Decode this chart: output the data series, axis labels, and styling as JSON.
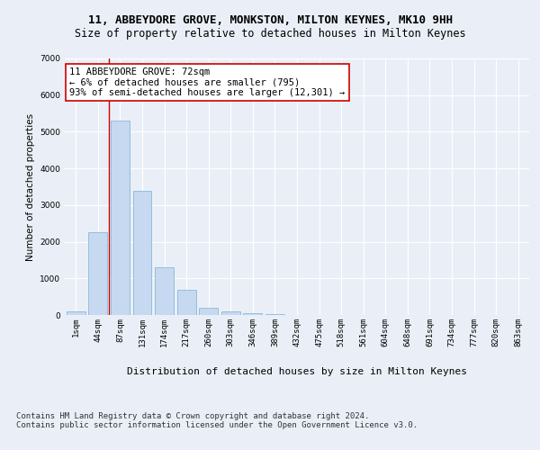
{
  "title_line1": "11, ABBEYDORE GROVE, MONKSTON, MILTON KEYNES, MK10 9HH",
  "title_line2": "Size of property relative to detached houses in Milton Keynes",
  "xlabel": "Distribution of detached houses by size in Milton Keynes",
  "ylabel": "Number of detached properties",
  "categories": [
    "1sqm",
    "44sqm",
    "87sqm",
    "131sqm",
    "174sqm",
    "217sqm",
    "260sqm",
    "303sqm",
    "346sqm",
    "389sqm",
    "432sqm",
    "475sqm",
    "518sqm",
    "561sqm",
    "604sqm",
    "648sqm",
    "691sqm",
    "734sqm",
    "777sqm",
    "820sqm",
    "863sqm"
  ],
  "values": [
    100,
    2250,
    5300,
    3400,
    1300,
    700,
    200,
    100,
    50,
    20,
    10,
    5,
    2,
    1,
    0,
    0,
    0,
    0,
    0,
    0,
    0
  ],
  "bar_color": "#c6d9f0",
  "bar_edge_color": "#7bafd4",
  "vline_color": "#cc0000",
  "vline_x": 1.5,
  "annotation_text": "11 ABBEYDORE GROVE: 72sqm\n← 6% of detached houses are smaller (795)\n93% of semi-detached houses are larger (12,301) →",
  "annotation_box_color": "#ffffff",
  "annotation_box_edge": "#cc0000",
  "ylim": [
    0,
    7000
  ],
  "yticks": [
    0,
    1000,
    2000,
    3000,
    4000,
    5000,
    6000,
    7000
  ],
  "footnote": "Contains HM Land Registry data © Crown copyright and database right 2024.\nContains public sector information licensed under the Open Government Licence v3.0.",
  "bg_color": "#eaeff7",
  "plot_bg_color": "#eaeff7",
  "grid_color": "#ffffff",
  "title_fontsize": 9,
  "subtitle_fontsize": 8.5,
  "footnote_fontsize": 6.5,
  "ylabel_fontsize": 7.5,
  "xlabel_fontsize": 8,
  "tick_fontsize": 6.5,
  "annotation_fontsize": 7.5
}
